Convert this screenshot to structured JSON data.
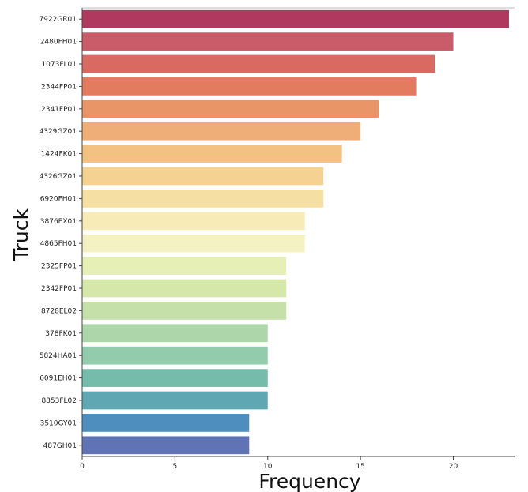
{
  "chart_data": {
    "type": "bar",
    "orientation": "horizontal",
    "title": "",
    "xlabel": "Frequency",
    "ylabel": "Truck",
    "xlim": [
      0,
      23.3
    ],
    "xticks": [
      0,
      5,
      10,
      15,
      20
    ],
    "grid": false,
    "categories": [
      "7922GR01",
      "2480FH01",
      "1073FL01",
      "2344FP01",
      "2341FP01",
      "4329GZ01",
      "1424FK01",
      "4326GZ01",
      "6920FH01",
      "3876EX01",
      "4865FH01",
      "2325FP01",
      "2342FP01",
      "8728EL02",
      "378FK01",
      "5824HA01",
      "6091EH01",
      "8853FL02",
      "3510GY01",
      "487GH01"
    ],
    "values": [
      23,
      20,
      19,
      18,
      16,
      15,
      14,
      13,
      13,
      12,
      12,
      11,
      11,
      11,
      10,
      10,
      10,
      10,
      9,
      9
    ],
    "colors": [
      "#a6244e",
      "#c44a5a",
      "#d55a50",
      "#e06e4e",
      "#e88a58",
      "#eda468",
      "#f2bb75",
      "#f4cd86",
      "#f4dc98",
      "#f6eab0",
      "#f3f1be",
      "#e3eeae",
      "#d2e6a0",
      "#bfdea0",
      "#a4d3a2",
      "#87c6a3",
      "#66b5a2",
      "#4e9fab",
      "#3a82b8",
      "#4e64ad"
    ],
    "bar_fill_opacity": 0.9
  }
}
